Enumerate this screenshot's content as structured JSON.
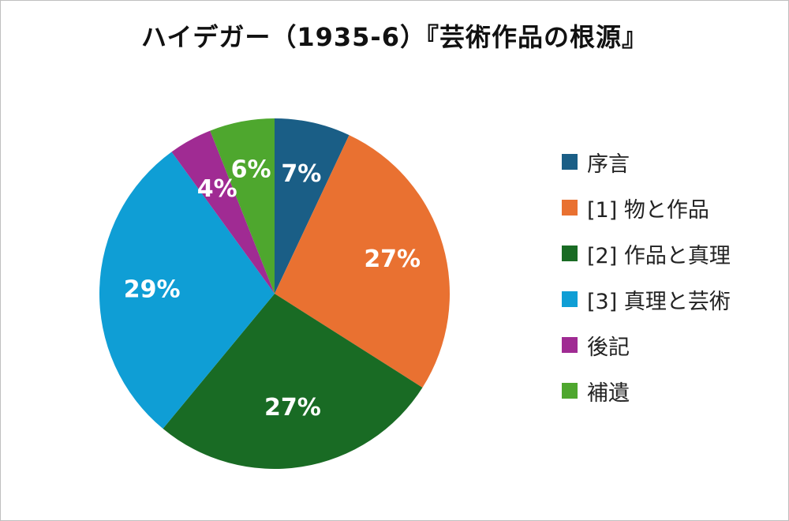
{
  "chart_data": {
    "type": "pie",
    "title": "ハイデガー（1935-6）『芸術作品の根源』",
    "start_angle_deg": 0,
    "direction": "clockwise",
    "slices": [
      {
        "label": "序言",
        "value": 7,
        "display": "7%",
        "color": "#1a5e86"
      },
      {
        "label": "[1] 物と作品",
        "value": 27,
        "display": "27%",
        "color": "#e97131"
      },
      {
        "label": "[2] 作品と真理",
        "value": 27,
        "display": "27%",
        "color": "#196b24"
      },
      {
        "label": "[3] 真理と芸術",
        "value": 29,
        "display": "29%",
        "color": "#0f9ed5"
      },
      {
        "label": "後記",
        "value": 4,
        "display": "4%",
        "color": "#a02b93"
      },
      {
        "label": "補遺",
        "value": 6,
        "display": "6%",
        "color": "#4ea72e"
      }
    ],
    "legend_position": "right"
  }
}
